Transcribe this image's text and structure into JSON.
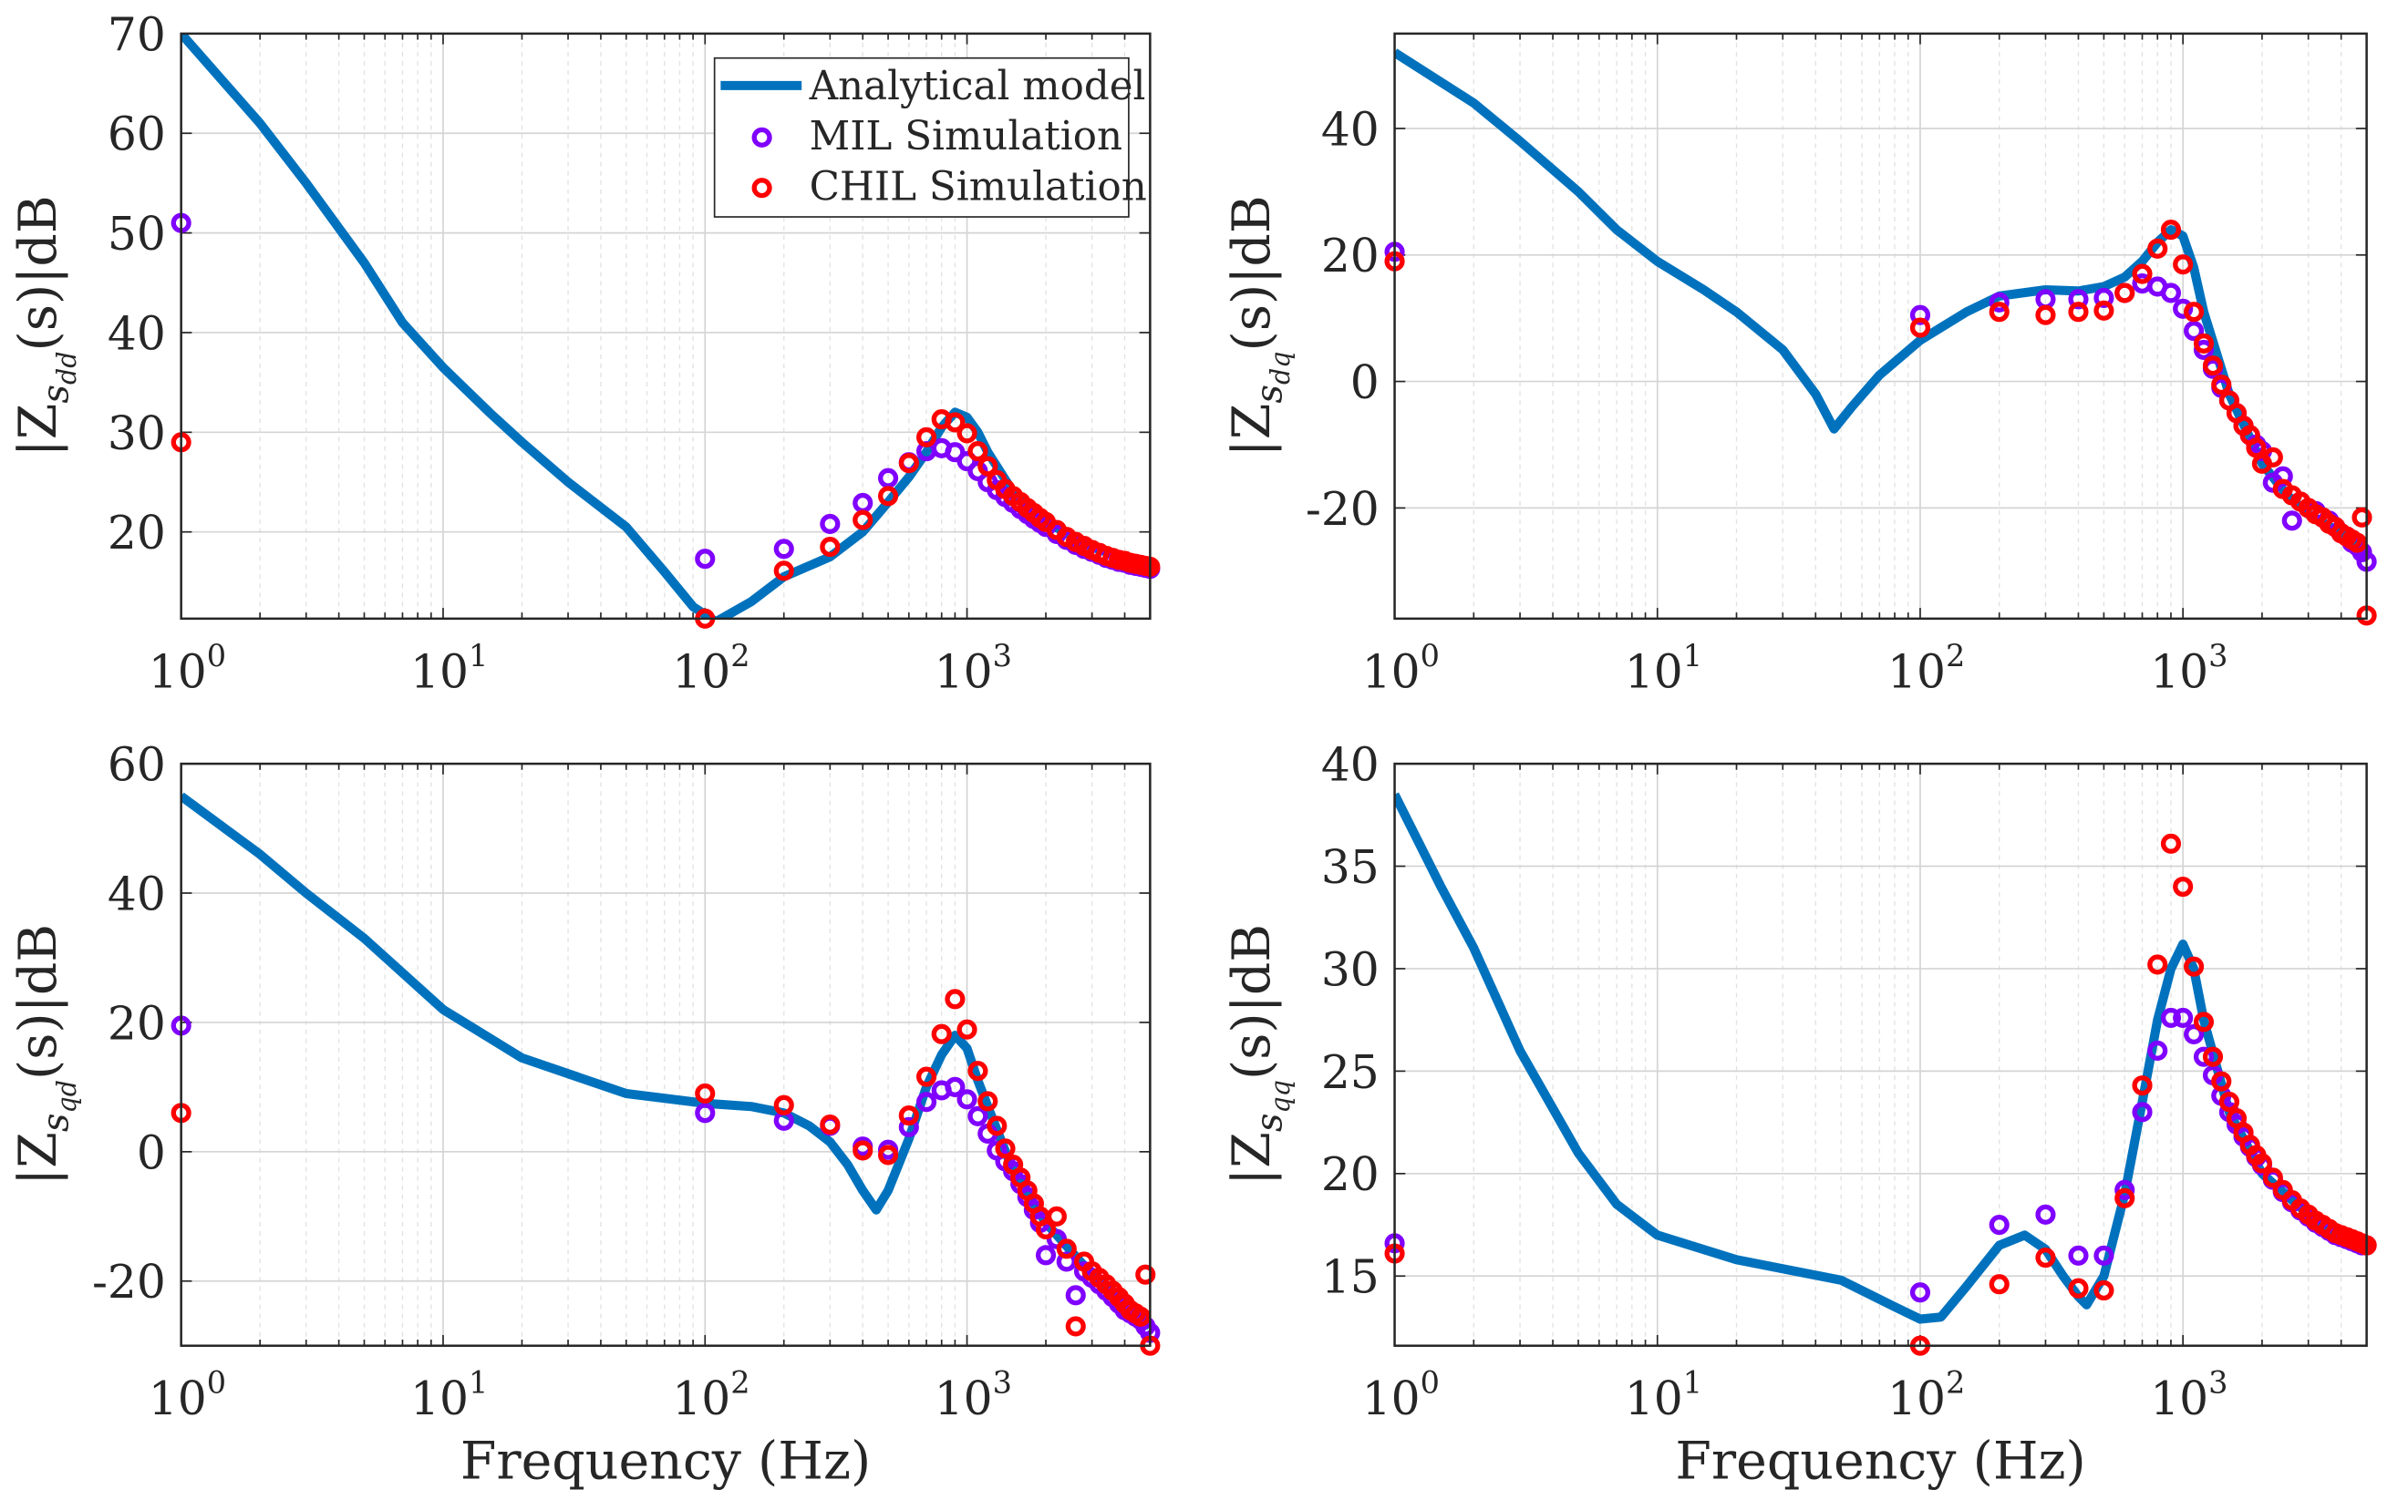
{
  "colors": {
    "analytical": "#0072bd",
    "mil": "#8000ff",
    "chil": "#ff0000",
    "grid": "#d9d9d9",
    "axis": "#262626"
  },
  "legend": {
    "placement": "top-right",
    "entries": [
      "Analytical model",
      "MIL Simulation",
      "CHIL Simulation"
    ]
  },
  "chart_data": [
    {
      "id": "sdd",
      "type": "line",
      "title": "",
      "ylabel_main": "|Z",
      "ylabel_sub": "s",
      "ylabel_subsub": "dd",
      "ylabel_tail": "(s)|dB",
      "xlabel": "",
      "xscale": "log",
      "xlim": [
        1,
        5000
      ],
      "ylim": [
        11.3,
        70
      ],
      "xticks": [
        "0",
        "1",
        "2",
        "3"
      ],
      "yticks": [
        20,
        30,
        40,
        50,
        60,
        70
      ],
      "grid": true,
      "legend": true,
      "analytical": {
        "f": [
          1,
          2,
          3,
          5,
          7,
          10,
          15,
          20,
          30,
          50,
          70,
          90,
          110,
          150,
          200,
          300,
          400,
          500,
          600,
          700,
          800,
          900,
          1000,
          1100,
          1200,
          1500,
          2000,
          3000,
          4000,
          5000
        ],
        "db": [
          70,
          61,
          55,
          47,
          41,
          36.5,
          32,
          29,
          25,
          20.5,
          16,
          12.5,
          11,
          13,
          15.5,
          17.5,
          20,
          23,
          25.5,
          28,
          30.5,
          32,
          31.5,
          30,
          28,
          24,
          21,
          18.5,
          17.3,
          16.6
        ]
      },
      "freqs": [
        1,
        100,
        200,
        300,
        400,
        500,
        600,
        700,
        800,
        900,
        1000,
        1100,
        1200,
        1300,
        1400,
        1500,
        1600,
        1700,
        1800,
        1900,
        2000,
        2200,
        2400,
        2600,
        2800,
        3000,
        3200,
        3400,
        3600,
        3800,
        4000,
        4200,
        4400,
        4600,
        4800,
        5000
      ],
      "mil": [
        51,
        17.3,
        18.3,
        20.8,
        22.9,
        25.4,
        27,
        28.1,
        28.4,
        28,
        27.1,
        26.1,
        25,
        24.2,
        23.5,
        22.9,
        22.3,
        21.8,
        21.3,
        20.9,
        20.5,
        19.8,
        19.2,
        18.7,
        18.3,
        18,
        17.7,
        17.4,
        17.2,
        17,
        16.9,
        16.7,
        16.6,
        16.5,
        16.4,
        16.3
      ],
      "chil": [
        29,
        11.3,
        16.1,
        18.5,
        21.2,
        23.6,
        26.9,
        29.5,
        31.3,
        31,
        29.9,
        28.1,
        26.6,
        25.2,
        24.3,
        23.6,
        23,
        22.4,
        21.9,
        21.4,
        21,
        20.2,
        19.5,
        19,
        18.6,
        18.2,
        17.9,
        17.6,
        17.4,
        17.2,
        17.1,
        16.9,
        16.8,
        16.7,
        16.6,
        16.5
      ]
    },
    {
      "id": "sdq",
      "type": "line",
      "title": "",
      "ylabel_main": "|Z",
      "ylabel_sub": "s",
      "ylabel_subsub": "dq",
      "ylabel_tail": "(s)|dB",
      "xlabel": "",
      "xscale": "log",
      "xlim": [
        1,
        5000
      ],
      "ylim": [
        -37.5,
        55
      ],
      "xticks": [
        "0",
        "1",
        "2",
        "3"
      ],
      "yticks": [
        -20,
        0,
        20,
        40
      ],
      "grid": true,
      "legend": false,
      "analytical": {
        "f": [
          1,
          2,
          3,
          5,
          7,
          10,
          15,
          20,
          30,
          40,
          47,
          55,
          70,
          100,
          150,
          200,
          300,
          400,
          500,
          600,
          700,
          800,
          900,
          1000,
          1100,
          1200,
          1500,
          2000,
          2500,
          3000,
          4000,
          5000
        ],
        "db": [
          52,
          44,
          38,
          30,
          24,
          19,
          14.5,
          11,
          5,
          -2,
          -7.5,
          -4,
          1,
          6.5,
          11,
          13.5,
          14.5,
          14.3,
          15,
          16.5,
          19,
          22,
          24,
          23,
          18,
          11,
          -2,
          -13,
          -18,
          -21,
          -24,
          -27
        ]
      },
      "freqs": [
        1,
        100,
        200,
        300,
        400,
        500,
        600,
        700,
        800,
        900,
        1000,
        1100,
        1200,
        1300,
        1400,
        1500,
        1600,
        1700,
        1800,
        1900,
        2000,
        2200,
        2400,
        2600,
        2800,
        3000,
        3200,
        3400,
        3600,
        3800,
        4000,
        4200,
        4400,
        4600,
        4800,
        5000
      ],
      "mil": [
        20.5,
        10.5,
        12.5,
        13,
        13,
        13.2,
        14,
        15.5,
        15,
        14,
        11.5,
        8,
        5,
        2,
        -1,
        -3,
        -5,
        -7,
        -8.5,
        -10,
        -11,
        -16,
        -15,
        -22,
        -19,
        -20,
        -20.5,
        -21.5,
        -22,
        -23,
        -24,
        -24.5,
        -25.5,
        -26,
        -27,
        -28.5
      ],
      "chil": [
        19,
        8.5,
        11,
        10.5,
        11,
        11.2,
        14,
        17,
        21,
        24,
        18.5,
        11,
        6,
        2.5,
        -0.5,
        -3,
        -5,
        -7,
        -8.5,
        -10.5,
        -13,
        -12,
        -17,
        -18,
        -19,
        -20,
        -21,
        -21.5,
        -22.5,
        -23,
        -24,
        -24.5,
        -25,
        -25.5,
        -21.5,
        -37
      ]
    },
    {
      "id": "sqd",
      "type": "line",
      "title": "",
      "ylabel_main": "|Z",
      "ylabel_sub": "s",
      "ylabel_subsub": "qd",
      "ylabel_tail": "(s)|dB",
      "xlabel": "Frequency (Hz)",
      "xscale": "log",
      "xlim": [
        1,
        5000
      ],
      "ylim": [
        -30,
        60
      ],
      "xticks": [
        "0",
        "1",
        "2",
        "3"
      ],
      "yticks": [
        -20,
        0,
        20,
        40,
        60
      ],
      "grid": true,
      "legend": false,
      "analytical": {
        "f": [
          1,
          2,
          3,
          5,
          10,
          20,
          50,
          100,
          150,
          200,
          250,
          300,
          350,
          400,
          450,
          500,
          600,
          700,
          800,
          900,
          1000,
          1100,
          1200,
          1500,
          2000,
          3000,
          4000,
          5000
        ],
        "db": [
          55,
          46,
          40,
          33,
          22,
          14.5,
          9,
          7.5,
          7,
          6,
          4,
          1.5,
          -2,
          -6,
          -9,
          -6,
          2,
          10,
          15,
          18,
          16,
          11,
          7,
          -3,
          -11,
          -19,
          -24,
          -27
        ]
      },
      "freqs": [
        1,
        100,
        200,
        300,
        400,
        500,
        600,
        700,
        800,
        900,
        1000,
        1100,
        1200,
        1300,
        1400,
        1500,
        1600,
        1700,
        1800,
        1900,
        2000,
        2200,
        2400,
        2600,
        2800,
        3000,
        3200,
        3400,
        3600,
        3800,
        4000,
        4200,
        4400,
        4600,
        4800,
        5000
      ],
      "mil": [
        19.5,
        6,
        4.8,
        4,
        0.8,
        0.3,
        3.8,
        7.7,
        9.5,
        10,
        8.1,
        5.5,
        2.8,
        0.2,
        -1.5,
        -3,
        -5,
        -7,
        -9,
        -11,
        -16,
        -13.5,
        -17,
        -22.2,
        -18.5,
        -19.5,
        -20.5,
        -21.5,
        -22.5,
        -23.5,
        -24.5,
        -25,
        -25.5,
        -26,
        -27,
        -28
      ],
      "chil": [
        6,
        9,
        7.2,
        4.2,
        0.2,
        -0.5,
        5.6,
        11.6,
        18.2,
        23.6,
        18.9,
        12.5,
        7.8,
        4,
        0.5,
        -2,
        -4,
        -6,
        -8,
        -10,
        -12,
        -10,
        -15,
        -27,
        -17,
        -18.5,
        -19.5,
        -20.5,
        -21.5,
        -22.5,
        -23.5,
        -24.5,
        -25,
        -25.5,
        -19,
        -30
      ]
    },
    {
      "id": "sqq",
      "type": "line",
      "title": "",
      "ylabel_main": "|Z",
      "ylabel_sub": "s",
      "ylabel_subsub": "qq",
      "ylabel_tail": "(s)|dB",
      "xlabel": "Frequency (Hz)",
      "xscale": "log",
      "xlim": [
        1,
        5000
      ],
      "ylim": [
        11.6,
        40
      ],
      "xticks": [
        "0",
        "1",
        "2",
        "3"
      ],
      "yticks": [
        15,
        20,
        25,
        30,
        35,
        40
      ],
      "grid": true,
      "legend": false,
      "analytical": {
        "f": [
          1,
          1.5,
          2,
          3,
          5,
          7,
          10,
          20,
          50,
          80,
          100,
          120,
          150,
          200,
          250,
          300,
          350,
          400,
          430,
          500,
          600,
          700,
          800,
          900,
          1000,
          1100,
          1200,
          1500,
          2000,
          3000,
          4000,
          5000
        ],
        "db": [
          38.5,
          34,
          31,
          26,
          21,
          18.5,
          17,
          15.8,
          14.8,
          13.5,
          12.9,
          13,
          14.5,
          16.5,
          17,
          16.3,
          15,
          14,
          13.6,
          15,
          19,
          23.5,
          27.5,
          30,
          31.2,
          30,
          27.5,
          23,
          20,
          18,
          17,
          16.5
        ]
      },
      "freqs": [
        1,
        100,
        200,
        300,
        400,
        500,
        600,
        700,
        800,
        900,
        1000,
        1100,
        1200,
        1300,
        1400,
        1500,
        1600,
        1700,
        1800,
        1900,
        2000,
        2200,
        2400,
        2600,
        2800,
        3000,
        3200,
        3400,
        3600,
        3800,
        4000,
        4200,
        4400,
        4600,
        4800,
        5000
      ],
      "mil": [
        16.6,
        14.2,
        17.5,
        18,
        16,
        16,
        19.2,
        23,
        26,
        27.6,
        27.6,
        26.8,
        25.7,
        24.8,
        23.8,
        23,
        22.4,
        21.8,
        21.3,
        20.8,
        20.4,
        19.7,
        19.1,
        18.6,
        18.2,
        17.9,
        17.6,
        17.4,
        17.2,
        17,
        16.9,
        16.8,
        16.7,
        16.6,
        16.5,
        16.5
      ],
      "chil": [
        16.1,
        11.6,
        14.6,
        15.9,
        14.4,
        14.3,
        18.8,
        24.3,
        30.2,
        36.1,
        34,
        30.1,
        27.4,
        25.7,
        24.5,
        23.5,
        22.7,
        22,
        21.4,
        20.9,
        20.5,
        19.8,
        19.2,
        18.7,
        18.3,
        18,
        17.7,
        17.5,
        17.3,
        17.1,
        17,
        16.9,
        16.8,
        16.7,
        16.6,
        16.5
      ]
    }
  ]
}
